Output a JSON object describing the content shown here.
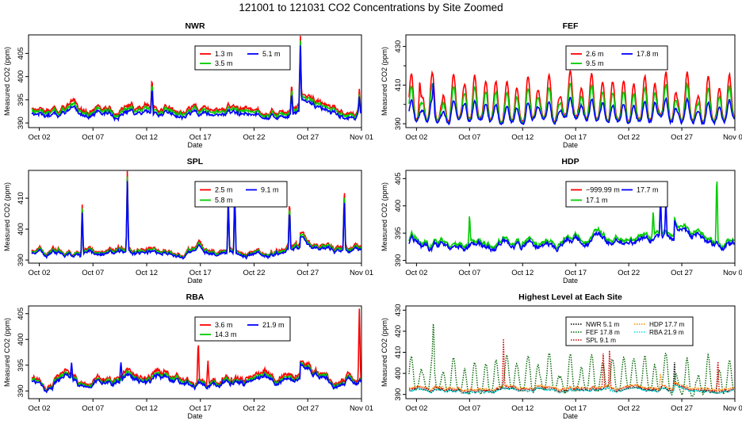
{
  "figure": {
    "title": "121001  to  121031 CO2 Concentrations by Site Zoomed"
  },
  "colors": {
    "red": "#ff0000",
    "green": "#00cc00",
    "blue": "#0000ff",
    "black": "#000000",
    "darkgreen": "#006400",
    "orange": "#ff8c00",
    "cyan": "#00e5e5",
    "darkred": "#cc0000"
  },
  "chart_data": [
    {
      "type": "line",
      "title": "NWR",
      "xlabel": "Date",
      "ylabel": "Measured CO2 (ppm)",
      "xlim": [
        0,
        31
      ],
      "ylim": [
        389,
        409
      ],
      "xticks": [
        1,
        6,
        11,
        16,
        21,
        26,
        31
      ],
      "xticklabels": [
        "Oct 02",
        "Oct 07",
        "Oct 12",
        "Oct 17",
        "Oct 22",
        "Oct 27",
        "Nov 01"
      ],
      "yticks": [
        390,
        395,
        400,
        405
      ],
      "legend": {
        "position": "top-right",
        "columns": 2
      },
      "series": [
        {
          "name": "1.3 m",
          "color": "#ff0000",
          "base": 392.5,
          "amp": 1.5,
          "offset": 0.6,
          "spikes": [
            [
              0.1,
              6.5
            ],
            [
              11.5,
              7.5
            ],
            [
              24.5,
              6.0
            ],
            [
              25.3,
              13.5
            ],
            [
              30.8,
              4.0
            ]
          ]
        },
        {
          "name": "3.5 m",
          "color": "#00cc00",
          "base": 392.3,
          "amp": 1.3,
          "offset": 0.3,
          "spikes": [
            [
              0.1,
              6.0
            ],
            [
              11.5,
              7.0
            ],
            [
              24.5,
              5.5
            ],
            [
              25.3,
              13.0
            ],
            [
              30.8,
              3.5
            ]
          ]
        },
        {
          "name": "5.1 m",
          "color": "#0000ff",
          "base": 392.0,
          "amp": 1.2,
          "offset": 0.0,
          "spikes": [
            [
              0.1,
              5.5
            ],
            [
              11.5,
              6.5
            ],
            [
              24.5,
              5.0
            ],
            [
              25.3,
              12.5
            ],
            [
              30.8,
              3.5
            ]
          ]
        }
      ]
    },
    {
      "type": "line",
      "title": "FEF",
      "xlabel": "Date",
      "ylabel": "Measured CO2 (ppm)",
      "xlim": [
        0,
        31
      ],
      "ylim": [
        388,
        436
      ],
      "xticks": [
        1,
        6,
        11,
        16,
        21,
        26,
        31
      ],
      "xticklabels": [
        "Oct 02",
        "Oct 07",
        "Oct 12",
        "Oct 17",
        "Oct 22",
        "Oct 27",
        "Nov 01"
      ],
      "yticks": [
        390,
        410,
        430
      ],
      "ytick_minor": [
        400,
        420
      ],
      "legend": {
        "position": "top-right",
        "columns": 2
      },
      "series": [
        {
          "name": "2.6 m",
          "color": "#ff0000",
          "base": 392.5,
          "amp": 24,
          "offset": 0,
          "diurnal": true,
          "spikes": [
            [
              1.3,
              12
            ]
          ]
        },
        {
          "name": "9.5 m",
          "color": "#00cc00",
          "base": 392.0,
          "amp": 18,
          "offset": 0,
          "diurnal": true,
          "spikes": []
        },
        {
          "name": "17.8 m",
          "color": "#0000ff",
          "base": 391.5,
          "amp": 11,
          "offset": 0,
          "diurnal": true,
          "spikes": [
            [
              2.6,
              12
            ]
          ]
        }
      ]
    },
    {
      "type": "line",
      "title": "SPL",
      "xlabel": "Date",
      "ylabel": "Measured CO2 (ppm)",
      "xlim": [
        0,
        31
      ],
      "ylim": [
        389,
        419
      ],
      "xticks": [
        1,
        6,
        11,
        16,
        21,
        26,
        31
      ],
      "xticklabels": [
        "Oct 02",
        "Oct 07",
        "Oct 12",
        "Oct 17",
        "Oct 22",
        "Oct 27",
        "Nov 01"
      ],
      "yticks": [
        390,
        400,
        410
      ],
      "legend": {
        "position": "top-right",
        "columns": 2
      },
      "series": [
        {
          "name": "2.5 m",
          "color": "#ff0000",
          "base": 393.0,
          "amp": 2.0,
          "offset": 0.4,
          "spikes": [
            [
              5.0,
              16
            ],
            [
              9.2,
              25
            ],
            [
              18.6,
              19
            ],
            [
              19.2,
              22
            ],
            [
              24.3,
              16
            ],
            [
              29.4,
              19
            ]
          ]
        },
        {
          "name": "5.8 m",
          "color": "#00cc00",
          "base": 392.8,
          "amp": 1.8,
          "offset": 0.2,
          "spikes": [
            [
              5.0,
              15
            ],
            [
              9.2,
              24
            ],
            [
              18.6,
              18
            ],
            [
              19.2,
              21
            ],
            [
              24.3,
              15
            ],
            [
              29.4,
              18
            ]
          ]
        },
        {
          "name": "9.1 m",
          "color": "#0000ff",
          "base": 392.5,
          "amp": 1.6,
          "offset": 0.0,
          "spikes": [
            [
              5.0,
              14
            ],
            [
              9.2,
              23
            ],
            [
              18.6,
              17
            ],
            [
              19.2,
              20
            ],
            [
              24.3,
              14
            ],
            [
              29.4,
              17
            ]
          ]
        }
      ]
    },
    {
      "type": "line",
      "title": "HDP",
      "xlabel": "Date",
      "ylabel": "Measured CO2 (ppm)",
      "xlim": [
        0,
        31
      ],
      "ylim": [
        389.5,
        406.5
      ],
      "xticks": [
        1,
        6,
        11,
        16,
        21,
        26,
        31
      ],
      "xticklabels": [
        "Oct 02",
        "Oct 07",
        "Oct 12",
        "Oct 17",
        "Oct 22",
        "Oct 27",
        "Nov 01"
      ],
      "yticks": [
        390,
        395,
        400,
        405
      ],
      "legend": {
        "position": "top-right",
        "columns": 2
      },
      "series": [
        {
          "name": "−999.99 m",
          "color": "#ff0000",
          "base": 393.0,
          "amp": 0,
          "offset": 0,
          "hidden": true,
          "spikes": []
        },
        {
          "name": "17.1 m",
          "color": "#00cc00",
          "base": 393.2,
          "amp": 1.4,
          "offset": 0.3,
          "spikes": [
            [
              6.0,
              5.5
            ],
            [
              23.3,
              5.0
            ],
            [
              24.0,
              7.0
            ],
            [
              29.3,
              12.5
            ]
          ]
        },
        {
          "name": "17.7 m",
          "color": "#0000ff",
          "base": 393.0,
          "amp": 1.3,
          "offset": 0.0,
          "spikes": [
            [
              24.0,
              7.0
            ],
            [
              24.5,
              6.5
            ]
          ]
        }
      ]
    },
    {
      "type": "line",
      "title": "RBA",
      "xlabel": "Date",
      "ylabel": "Measured CO2 (ppm)",
      "xlim": [
        0,
        31
      ],
      "ylim": [
        388.5,
        406.5
      ],
      "xticks": [
        1,
        6,
        11,
        16,
        21,
        26,
        31
      ],
      "xticklabels": [
        "Oct 02",
        "Oct 07",
        "Oct 12",
        "Oct 17",
        "Oct 22",
        "Oct 27",
        "Nov 01"
      ],
      "yticks": [
        390,
        395,
        400,
        405
      ],
      "legend": {
        "position": "top-right",
        "columns": 2
      },
      "series": [
        {
          "name": "3.6 m",
          "color": "#ff0000",
          "base": 392.0,
          "amp": 1.6,
          "offset": 0.4,
          "spikes": [
            [
              15.8,
              8
            ],
            [
              16.7,
              5
            ],
            [
              30.8,
              13.5
            ]
          ]
        },
        {
          "name": "14.3 m",
          "color": "#00cc00",
          "base": 391.8,
          "amp": 1.4,
          "offset": 0.2,
          "spikes": []
        },
        {
          "name": "21.9 m",
          "color": "#0000ff",
          "base": 391.7,
          "amp": 1.3,
          "offset": 0.0,
          "spikes": [
            [
              4.0,
              3
            ],
            [
              8.6,
              4
            ]
          ]
        }
      ]
    },
    {
      "type": "line",
      "title": "Highest Level at Each Site",
      "xlabel": "Date",
      "ylabel": "Measured CO2 (ppm)",
      "xlim": [
        0,
        31
      ],
      "ylim": [
        388,
        432
      ],
      "xticks": [
        1,
        6,
        11,
        16,
        21,
        26,
        31
      ],
      "xticklabels": [
        "Oct 02",
        "Oct 07",
        "Oct 12",
        "Oct 17",
        "Oct 22",
        "Oct 27",
        "Nov 01"
      ],
      "yticks": [
        390,
        400,
        410,
        420,
        430
      ],
      "legend": {
        "position": "top-right",
        "columns": 2
      },
      "series": [
        {
          "name": "NWR  5.1 m",
          "color": "#000000",
          "base": 391.8,
          "amp": 1.3,
          "offset": 0,
          "dotted": true,
          "spikes": [
            [
              25.3,
              12
            ]
          ]
        },
        {
          "name": "FEF  17.8 m",
          "color": "#006400",
          "base": 391.5,
          "amp": 17,
          "offset": 0,
          "diurnal": true,
          "dotted": true,
          "spikes": [
            [
              2.6,
              20
            ]
          ]
        },
        {
          "name": "SPL  9.1 m",
          "color": "#cc0000",
          "base": 392.5,
          "amp": 1.6,
          "offset": 0,
          "dotted": true,
          "spikes": [
            [
              9.2,
              23
            ],
            [
              18.6,
              17
            ],
            [
              19.2,
              20
            ],
            [
              29.4,
              17
            ]
          ]
        },
        {
          "name": "HDP  17.7 m",
          "color": "#ff8c00",
          "base": 393.0,
          "amp": 1.3,
          "offset": 0,
          "dotted": true,
          "spikes": [
            [
              24.0,
              7
            ]
          ]
        },
        {
          "name": "RBA  21.9 m",
          "color": "#00e5e5",
          "base": 391.7,
          "amp": 1.3,
          "offset": 0,
          "dotted": true,
          "spikes": []
        }
      ]
    }
  ]
}
